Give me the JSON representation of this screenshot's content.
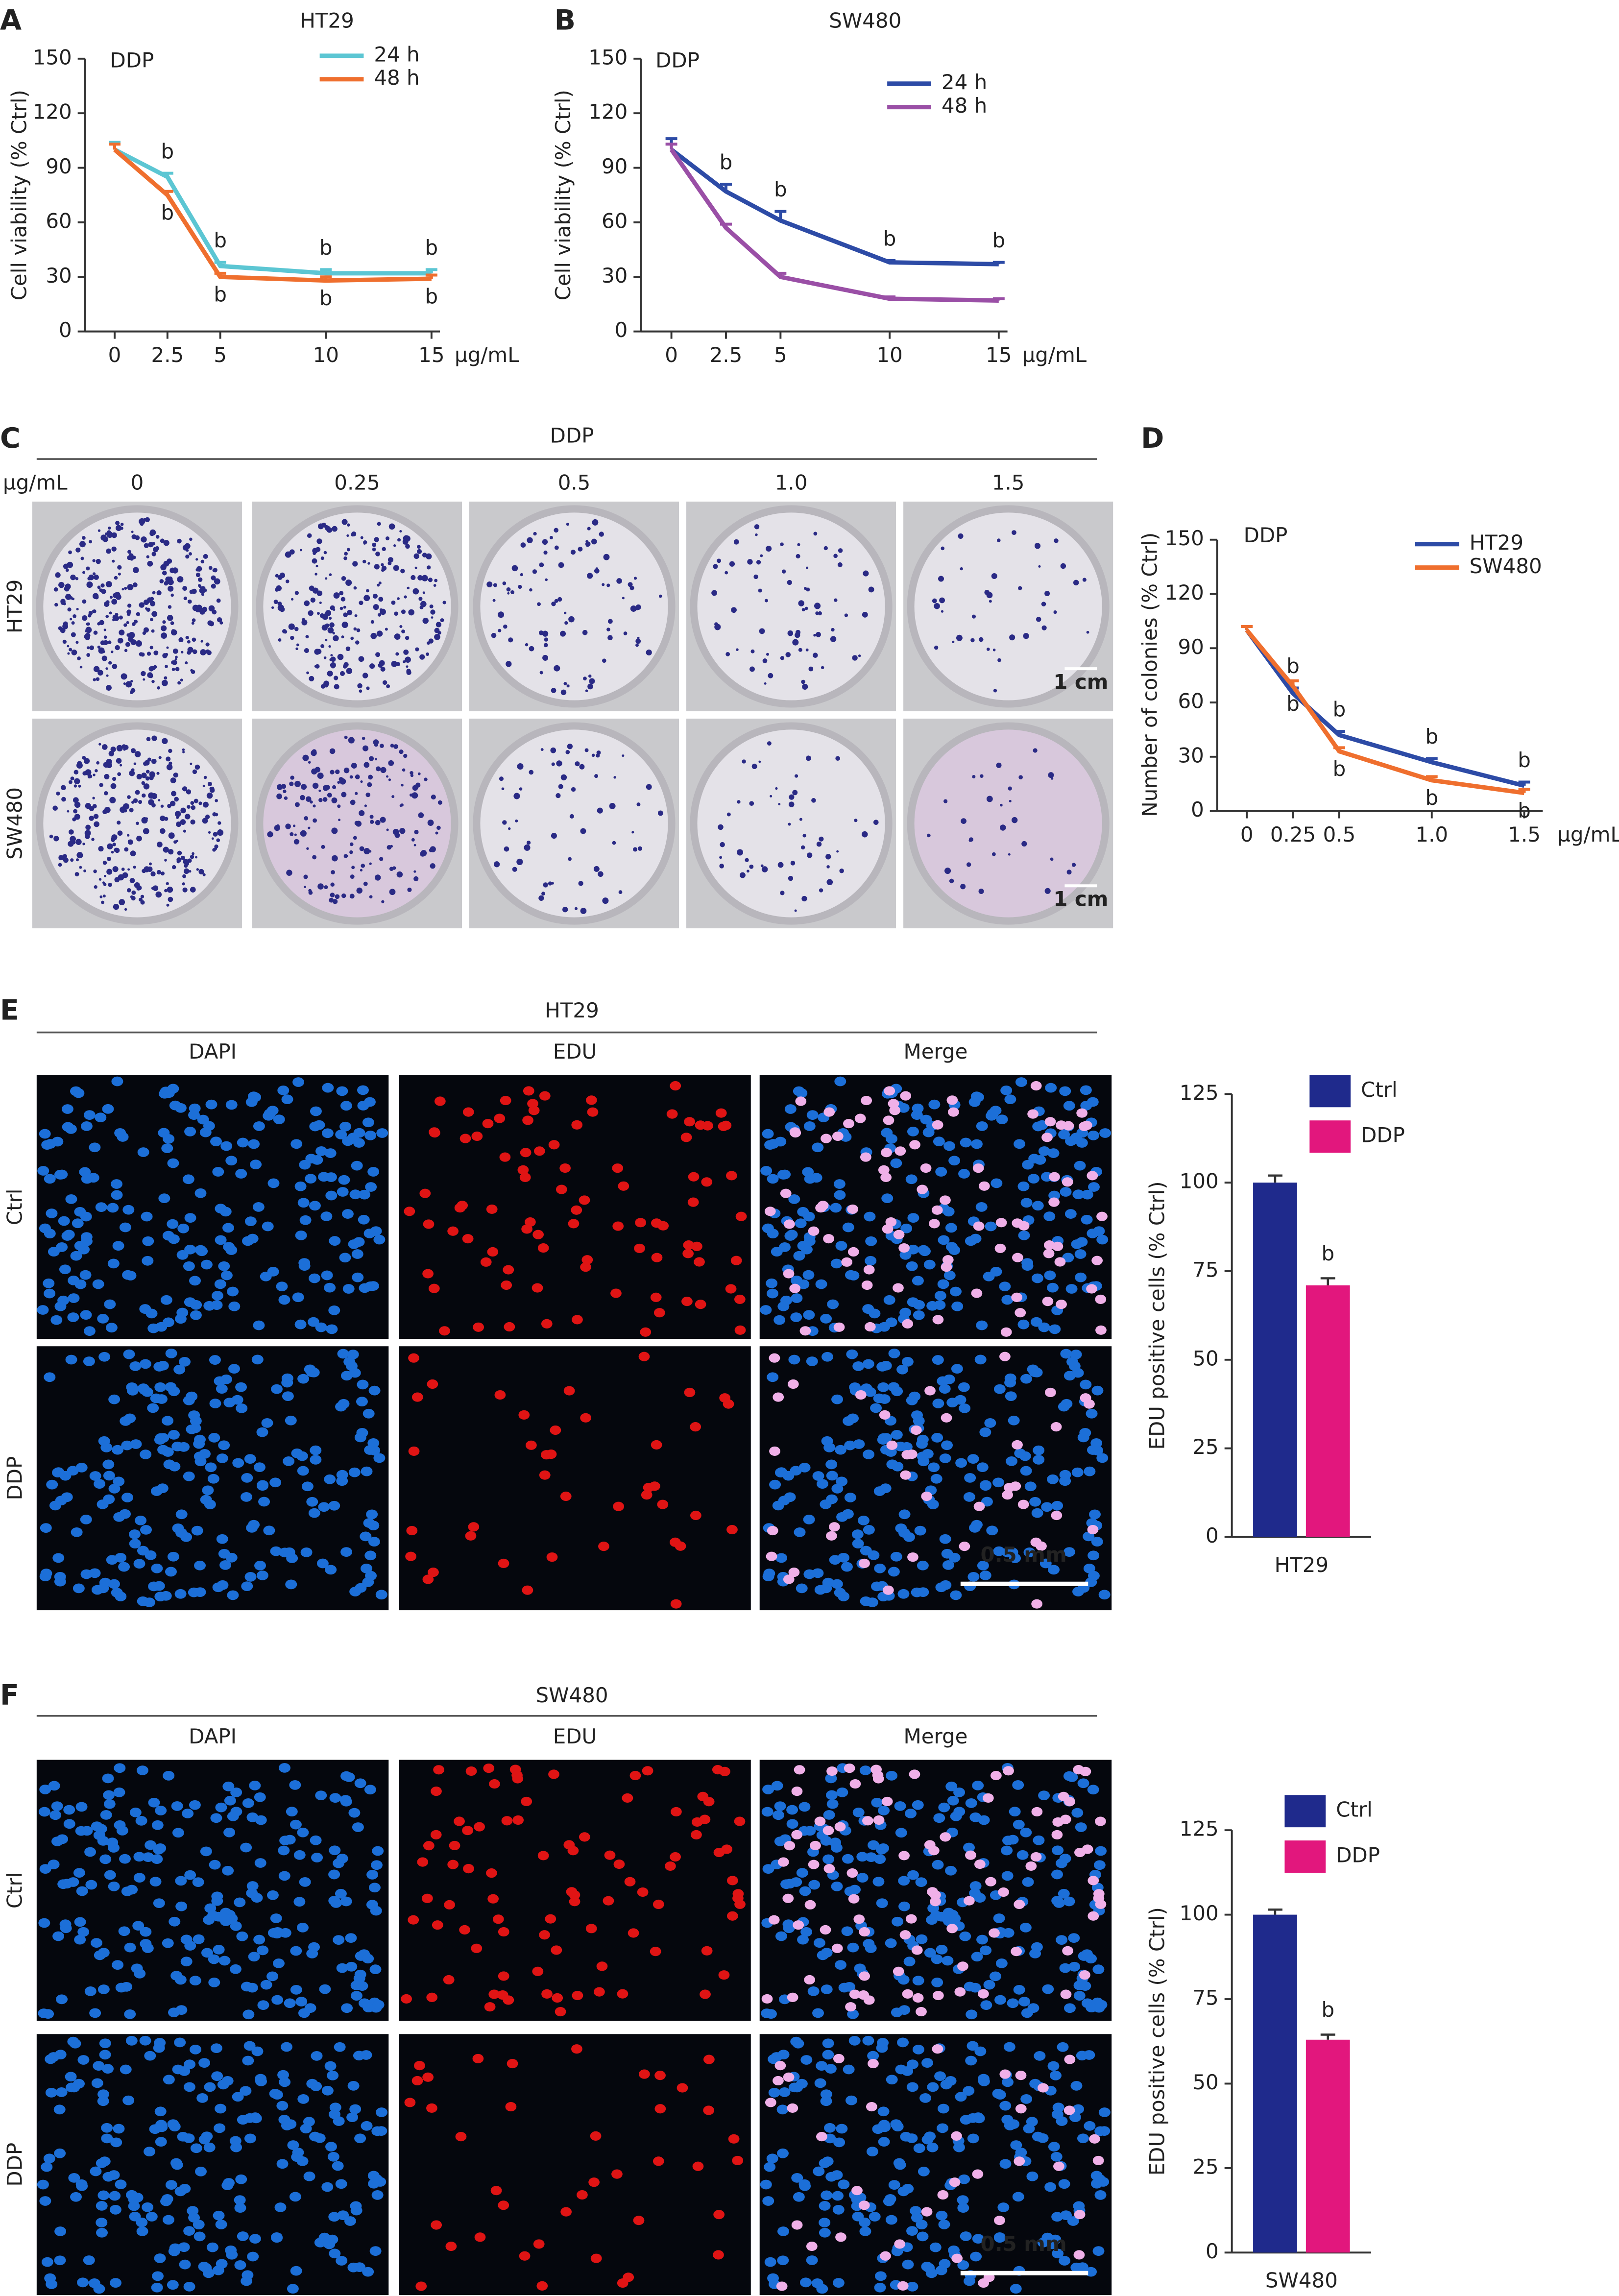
{
  "chart_data": [
    {
      "type": "line",
      "title": "HT29",
      "annotation": "DDP",
      "xlabel": "µg/mL",
      "ylabel": "Cell viability (% Ctrl)",
      "x": [
        0,
        2.5,
        5,
        10,
        15
      ],
      "xlim": [
        -1.4,
        15.4
      ],
      "xticks": [
        0,
        2.5,
        5,
        10,
        15
      ],
      "ylim": [
        0,
        150
      ],
      "yticks": [
        0,
        30,
        60,
        90,
        120,
        150
      ],
      "series": [
        {
          "name": "24 h",
          "color": "#5cc6d3",
          "values": [
            100,
            85,
            36,
            32,
            32
          ],
          "errors": [
            4,
            2,
            2,
            2,
            2
          ],
          "sig_labels": [
            null,
            "b",
            "b",
            "b",
            "b"
          ]
        },
        {
          "name": "48 h",
          "color": "#ef6f2e",
          "values": [
            100,
            75,
            30,
            28,
            29
          ],
          "errors": [
            3,
            2,
            2,
            2,
            2
          ],
          "sig_labels": [
            null,
            "b",
            "b",
            "b",
            "b"
          ]
        }
      ]
    },
    {
      "type": "line",
      "title": "SW480",
      "annotation": "DDP",
      "xlabel": "µg/mL",
      "ylabel": "Cell viability (% Ctrl)",
      "x": [
        0,
        2.5,
        5,
        10,
        15
      ],
      "xlim": [
        -1.4,
        15.4
      ],
      "xticks": [
        0,
        2.5,
        5,
        10,
        15
      ],
      "ylim": [
        0,
        150
      ],
      "yticks": [
        0,
        30,
        60,
        90,
        120,
        150
      ],
      "series": [
        {
          "name": "24 h",
          "color": "#2d4ba6",
          "values": [
            100,
            77,
            61,
            38,
            37
          ],
          "errors": [
            6,
            4,
            5,
            1,
            1
          ],
          "sig_labels": [
            null,
            "b",
            "b",
            "b",
            "b"
          ]
        },
        {
          "name": "48 h",
          "color": "#9a4fa6",
          "values": [
            100,
            57,
            30,
            18,
            17
          ],
          "errors": [
            3,
            2,
            2,
            1,
            1
          ],
          "sig_labels": [
            null,
            null,
            null,
            null,
            null
          ]
        }
      ]
    },
    {
      "type": "line",
      "annotation": "DDP",
      "xlabel": "µg/mL",
      "ylabel": "Number of colonies (% Ctrl)",
      "x": [
        0,
        0.25,
        0.5,
        1,
        1.5
      ],
      "xlim": [
        -0.16,
        1.6
      ],
      "xticks": [
        0,
        0.25,
        0.5,
        {
          "value": 1,
          "label": "1.0"
        },
        1.5
      ],
      "ylim": [
        0,
        150
      ],
      "yticks": [
        0,
        30,
        60,
        90,
        120,
        150
      ],
      "series": [
        {
          "name": "HT29",
          "color": "#2d4ba6",
          "values": [
            100,
            65,
            42,
            27,
            14
          ],
          "errors": [
            2,
            3,
            2,
            2,
            2
          ],
          "sig_labels": [
            null,
            "b",
            "b",
            "b",
            "b"
          ]
        },
        {
          "name": "SW480",
          "color": "#ef6f2e",
          "values": [
            100,
            69,
            33,
            17,
            10
          ],
          "errors": [
            2,
            3,
            2,
            2,
            2
          ],
          "sig_labels": [
            null,
            "b",
            "b",
            "b",
            "b"
          ]
        }
      ]
    },
    {
      "type": "bar",
      "ylabel": "EDU positive cells (% Ctrl)",
      "categories": [
        "HT29"
      ],
      "ylim": [
        0,
        125
      ],
      "yticks": [
        0,
        25,
        50,
        75,
        100,
        125
      ],
      "series": [
        {
          "name": "Ctrl",
          "color": "#1f2a8c",
          "values": [
            100
          ],
          "errors": [
            2
          ],
          "sig_labels": [
            null
          ]
        },
        {
          "name": "DDP",
          "color": "#e2177d",
          "values": [
            71
          ],
          "errors": [
            2
          ],
          "sig_labels": [
            "b"
          ]
        }
      ]
    },
    {
      "type": "bar",
      "ylabel": "EDU positive cells (% Ctrl)",
      "categories": [
        "SW480"
      ],
      "ylim": [
        0,
        125
      ],
      "yticks": [
        0,
        25,
        50,
        75,
        100,
        125
      ],
      "series": [
        {
          "name": "Ctrl",
          "color": "#1f2a8c",
          "values": [
            100
          ],
          "errors": [
            1.5
          ],
          "sig_labels": [
            null
          ]
        },
        {
          "name": "DDP",
          "color": "#e2177d",
          "values": [
            63
          ],
          "errors": [
            1.5
          ],
          "sig_labels": [
            "b"
          ]
        }
      ]
    }
  ],
  "figure": {
    "panel_labels": [
      "A",
      "B",
      "C",
      "D",
      "E",
      "F"
    ],
    "C": {
      "header": "DDP",
      "unit": "µg/mL",
      "columns": [
        "0",
        "0.25",
        "0.5",
        "1.0",
        "1.5"
      ],
      "rows": [
        "HT29",
        "SW480"
      ],
      "scale_bars": [
        "1 cm",
        "1 cm"
      ]
    },
    "E": {
      "header": "HT29",
      "columns": [
        "DAPI",
        "EDU",
        "Merge"
      ],
      "rows": [
        "Ctrl",
        "DDP"
      ],
      "scale_bar": "0.5 mm"
    },
    "F": {
      "header": "SW480",
      "columns": [
        "DAPI",
        "EDU",
        "Merge"
      ],
      "rows": [
        "Ctrl",
        "DDP"
      ],
      "scale_bar": "0.5 mm"
    }
  }
}
